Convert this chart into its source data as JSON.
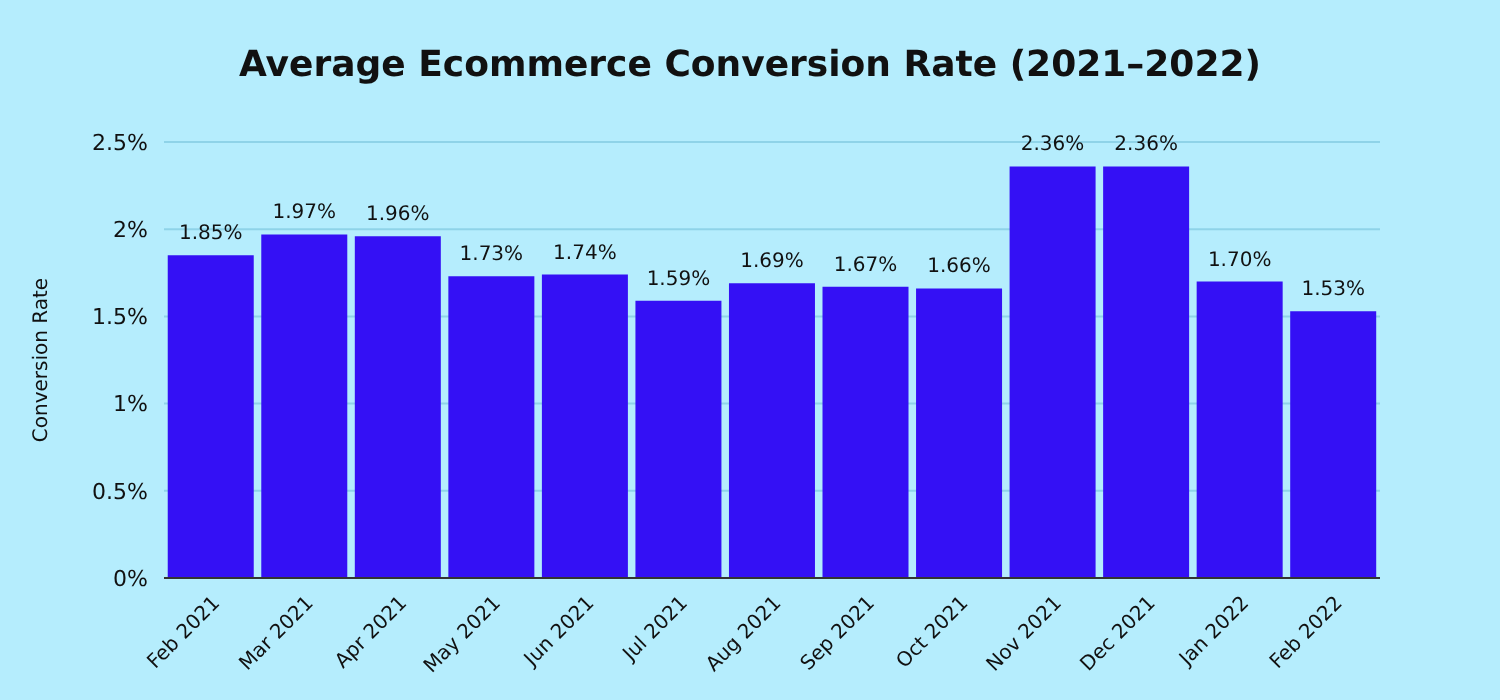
{
  "chart_data": {
    "type": "bar",
    "title": "Average Ecommerce Conversion Rate (2021–2022)",
    "ylabel": "Conversion Rate",
    "categories": [
      "Feb 2021",
      "Mar 2021",
      "Apr 2021",
      "May 2021",
      "Jun 2021",
      "Jul 2021",
      "Aug 2021",
      "Sep 2021",
      "Oct 2021",
      "Nov 2021",
      "Dec 2021",
      "Jan 2022",
      "Feb 2022"
    ],
    "values": [
      1.85,
      1.97,
      1.96,
      1.73,
      1.74,
      1.59,
      1.69,
      1.67,
      1.66,
      2.36,
      2.36,
      1.7,
      1.53
    ],
    "value_labels": [
      "1.85%",
      "1.97%",
      "1.96%",
      "1.73%",
      "1.74%",
      "1.59%",
      "1.69%",
      "1.67%",
      "1.66%",
      "2.36%",
      "2.36%",
      "1.70%",
      "1.53%"
    ],
    "color": "#3410f5",
    "ylim": [
      0,
      2.5
    ],
    "yticks": [
      {
        "value": 0,
        "label": "0%"
      },
      {
        "value": 0.5,
        "label": "0.5%"
      },
      {
        "value": 1,
        "label": "1%"
      },
      {
        "value": 1.5,
        "label": "1.5%"
      },
      {
        "value": 2,
        "label": "2%"
      },
      {
        "value": 2.5,
        "label": "2.5%"
      }
    ],
    "grid": "y"
  }
}
